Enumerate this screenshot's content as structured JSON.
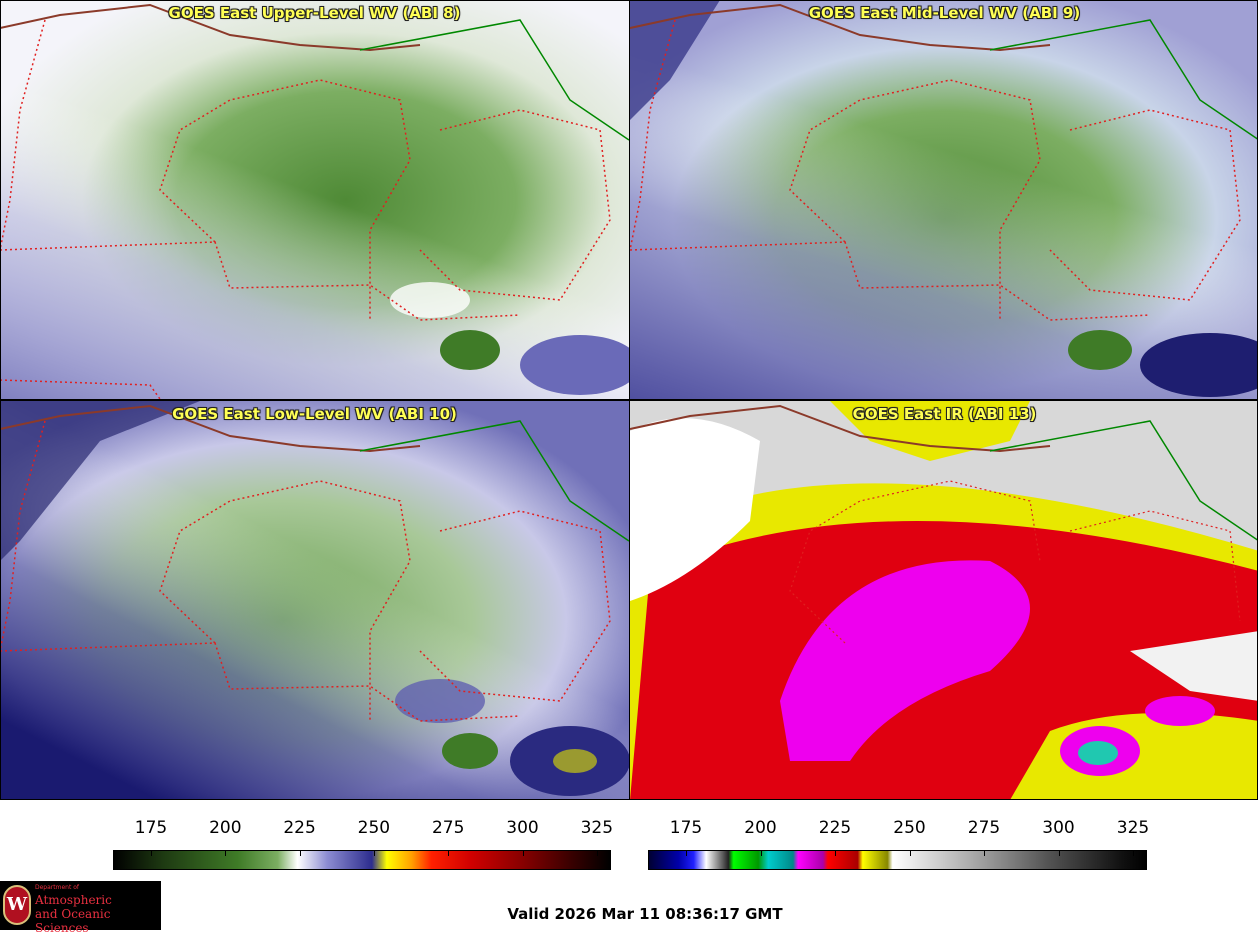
{
  "panels": {
    "upper_left": {
      "title": "GOES East Upper-Level WV (ABI 8)"
    },
    "upper_right": {
      "title": "GOES East Mid-Level WV (ABI 9)"
    },
    "lower_left": {
      "title": "GOES East Low-Level WV (ABI 10)"
    },
    "lower_right": {
      "title": "GOES East IR (ABI 13)"
    }
  },
  "colorbars": {
    "wv": {
      "ticks": [
        "175",
        "200",
        "225",
        "250",
        "275",
        "300",
        "325"
      ]
    },
    "ir": {
      "ticks": [
        "175",
        "200",
        "225",
        "250",
        "275",
        "300",
        "325"
      ]
    }
  },
  "logo": {
    "dept": "Department of",
    "line1": "Atmospheric",
    "line2": "and Oceanic Sciences",
    "seal_letter": "W"
  },
  "footer": {
    "valid_time": "Valid 2026 Mar 11 08:36:17 GMT"
  }
}
